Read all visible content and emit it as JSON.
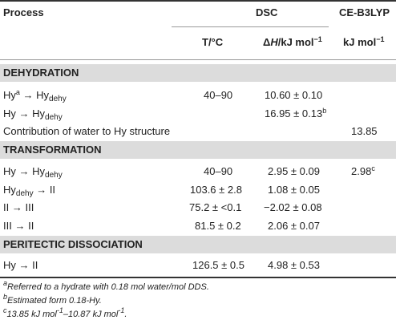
{
  "header": {
    "process": "Process",
    "dsc": "DSC",
    "ceb3lyp": "CE-B3LYP",
    "t_unit": "T/°C",
    "dh_unit_prefix": "Δ",
    "dh_unit_var": "H",
    "dh_unit_rest": "/kJ mol",
    "dh_unit_exp": "−1",
    "ce_unit": "kJ mol",
    "ce_unit_exp": "−1"
  },
  "sections": {
    "dehydration": "DEHYDRATION",
    "transformation": "TRANSFORMATION",
    "peritectic": "PERITECTIC DISSOCIATION"
  },
  "rows": {
    "r1": {
      "p1": "Hy",
      "p1sup": "a",
      "arrow": " → ",
      "p2": "Hy",
      "p2sub": "dehy",
      "t": "40–90",
      "dh": "10.60 ± 0.10",
      "ce": ""
    },
    "r2": {
      "p1": "Hy",
      "arrow": " → ",
      "p2": "Hy",
      "p2sub": "dehy",
      "t": "",
      "dh": "16.95 ± 0.13",
      "dhsup": "b",
      "ce": ""
    },
    "r3": {
      "label": "Contribution of water to Hy structure",
      "ce": "13.85"
    },
    "r4": {
      "p1": "Hy",
      "arrow": " → ",
      "p2": "Hy",
      "p2sub": "dehy",
      "t": "40–90",
      "dh": "2.95 ± 0.09",
      "ce": "2.98",
      "cesup": "c"
    },
    "r5": {
      "p1": "Hy",
      "p1sub": "dehy",
      "arrow": " → ",
      "p2": "II",
      "t": "103.6 ± 2.8",
      "dh": "1.08 ± 0.05"
    },
    "r6": {
      "p1": "II",
      "arrow": " → ",
      "p2": "III",
      "t": "75.2 ± <0.1",
      "dh": "−2.02 ± 0.08"
    },
    "r7": {
      "p1": "III",
      "arrow": " → ",
      "p2": "II",
      "t": "81.5 ± 0.2",
      "dh": "2.06 ± 0.07"
    },
    "r8": {
      "p1": "Hy",
      "arrow": " → ",
      "p2": "II",
      "t": "126.5 ± 0.5",
      "dh": "4.98 ± 0.53"
    }
  },
  "notes": {
    "a_mark": "a",
    "a_text": "Referred to a hydrate with 0.18 mol water/mol DDS.",
    "b_mark": "b",
    "b_text": "Estimated form 0.18-Hy.",
    "c_mark": "c",
    "c_text1": "13.85 kJ mol",
    "c_exp1": "-1",
    "c_text2": "–10.87 kJ mol",
    "c_exp2": "-1",
    "c_end": "."
  }
}
